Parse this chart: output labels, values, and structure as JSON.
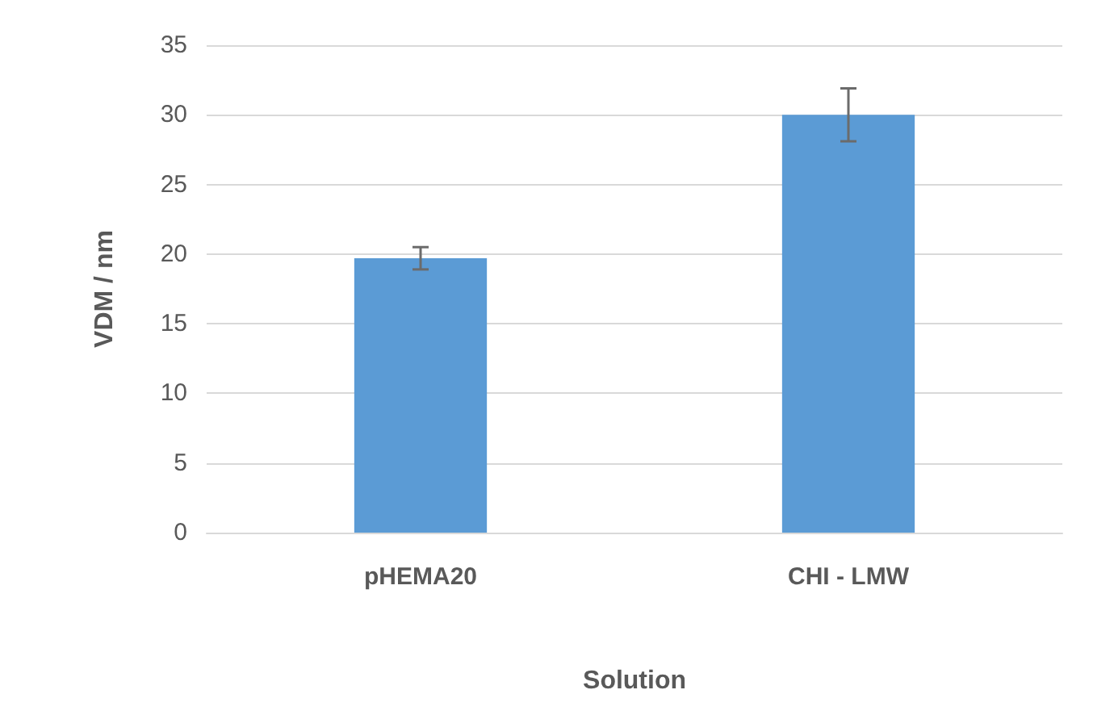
{
  "chart_data": {
    "type": "bar",
    "xlabel": "Solution",
    "ylabel": "VDM / nm",
    "categories": [
      "pHEMA20",
      "CHI - LMW"
    ],
    "values": [
      19.7,
      30.0
    ],
    "errors": [
      0.8,
      1.9
    ],
    "color": "#5b9bd5",
    "ylim": [
      0,
      35
    ],
    "yticks": [
      0,
      5,
      10,
      15,
      20,
      25,
      30,
      35
    ],
    "grid": "y"
  }
}
